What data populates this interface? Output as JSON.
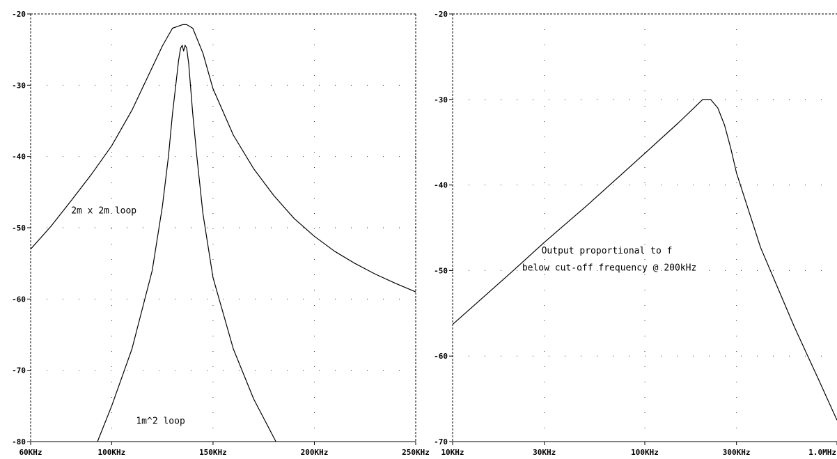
{
  "chart_data": [
    {
      "type": "line",
      "x_scale": "linear",
      "xlim": [
        60,
        250
      ],
      "ylim": [
        -80,
        -20
      ],
      "x_ticks": [
        60,
        100,
        150,
        200,
        250
      ],
      "x_tick_labels": [
        "60KHz",
        "100KHz",
        "150KHz",
        "200KHz",
        "250KHz"
      ],
      "y_ticks": [
        -20,
        -30,
        -40,
        -50,
        -60,
        -70,
        -80
      ],
      "y_tick_labels": [
        "-20",
        "-30",
        "-40",
        "-50",
        "-60",
        "-70",
        "-80"
      ],
      "grid": "dotted",
      "line_color": "#000000",
      "series": [
        {
          "x": [
            60,
            70,
            80,
            90,
            100,
            110,
            120,
            125,
            130,
            135,
            137,
            140,
            145,
            150,
            160,
            170,
            180,
            190,
            200,
            210,
            220,
            230,
            240,
            250
          ],
          "y": [
            -53,
            -49.8,
            -46.2,
            -42.5,
            -38.5,
            -33.5,
            -27.5,
            -24.5,
            -22,
            -21.5,
            -21.5,
            -22,
            -25.5,
            -30.5,
            -37,
            -41.7,
            -45.5,
            -48.7,
            -51.2,
            -53.3,
            -55,
            -56.5,
            -57.8,
            -59
          ]
        },
        {
          "x": [
            93,
            100,
            110,
            120,
            125,
            128,
            130,
            132,
            133,
            134,
            134.8,
            135.5,
            136.2,
            137,
            138,
            140,
            142,
            145,
            150,
            160,
            170,
            181
          ],
          "y": [
            -80,
            -75,
            -67,
            -56,
            -47,
            -40,
            -34,
            -29,
            -26.5,
            -24.8,
            -24.4,
            -25.2,
            -24.4,
            -24.8,
            -27,
            -34,
            -40,
            -48,
            -57,
            -67,
            -74,
            -80
          ]
        }
      ],
      "annotations": [
        {
          "text": "2m x 2m loop",
          "x": 80,
          "y": -48
        },
        {
          "text": "1m^2 loop",
          "x": 112,
          "y": -77.5
        }
      ]
    },
    {
      "type": "line",
      "x_scale": "log",
      "xlim": [
        10,
        1000
      ],
      "ylim": [
        -70,
        -20
      ],
      "x_ticks": [
        10,
        30,
        100,
        300,
        1000
      ],
      "x_tick_labels": [
        "10KHz",
        "30KHz",
        "100KHz",
        "300KHz",
        "1.0MHz"
      ],
      "y_ticks": [
        -20,
        -30,
        -40,
        -50,
        -60,
        -70
      ],
      "y_tick_labels": [
        "-20",
        "-30",
        "-40",
        "-50",
        "-60",
        "-70"
      ],
      "grid": "dotted",
      "line_color": "#000000",
      "series": [
        {
          "x": [
            10,
            20,
            30,
            50,
            100,
            150,
            180,
            200,
            220,
            240,
            260,
            280,
            300,
            400,
            600,
            800,
            1000
          ],
          "y": [
            -56.3,
            -50.3,
            -46.7,
            -42.4,
            -36.3,
            -32.7,
            -31,
            -30,
            -30,
            -31,
            -33,
            -35.7,
            -38.6,
            -47.3,
            -56.6,
            -62.7,
            -67.5
          ]
        }
      ],
      "annotations": [
        {
          "text": "Output proportional to f",
          "x": 29,
          "y": -48
        },
        {
          "text": "below cut-off frequency @ 200kHz",
          "x": 23,
          "y": -50
        }
      ]
    }
  ]
}
